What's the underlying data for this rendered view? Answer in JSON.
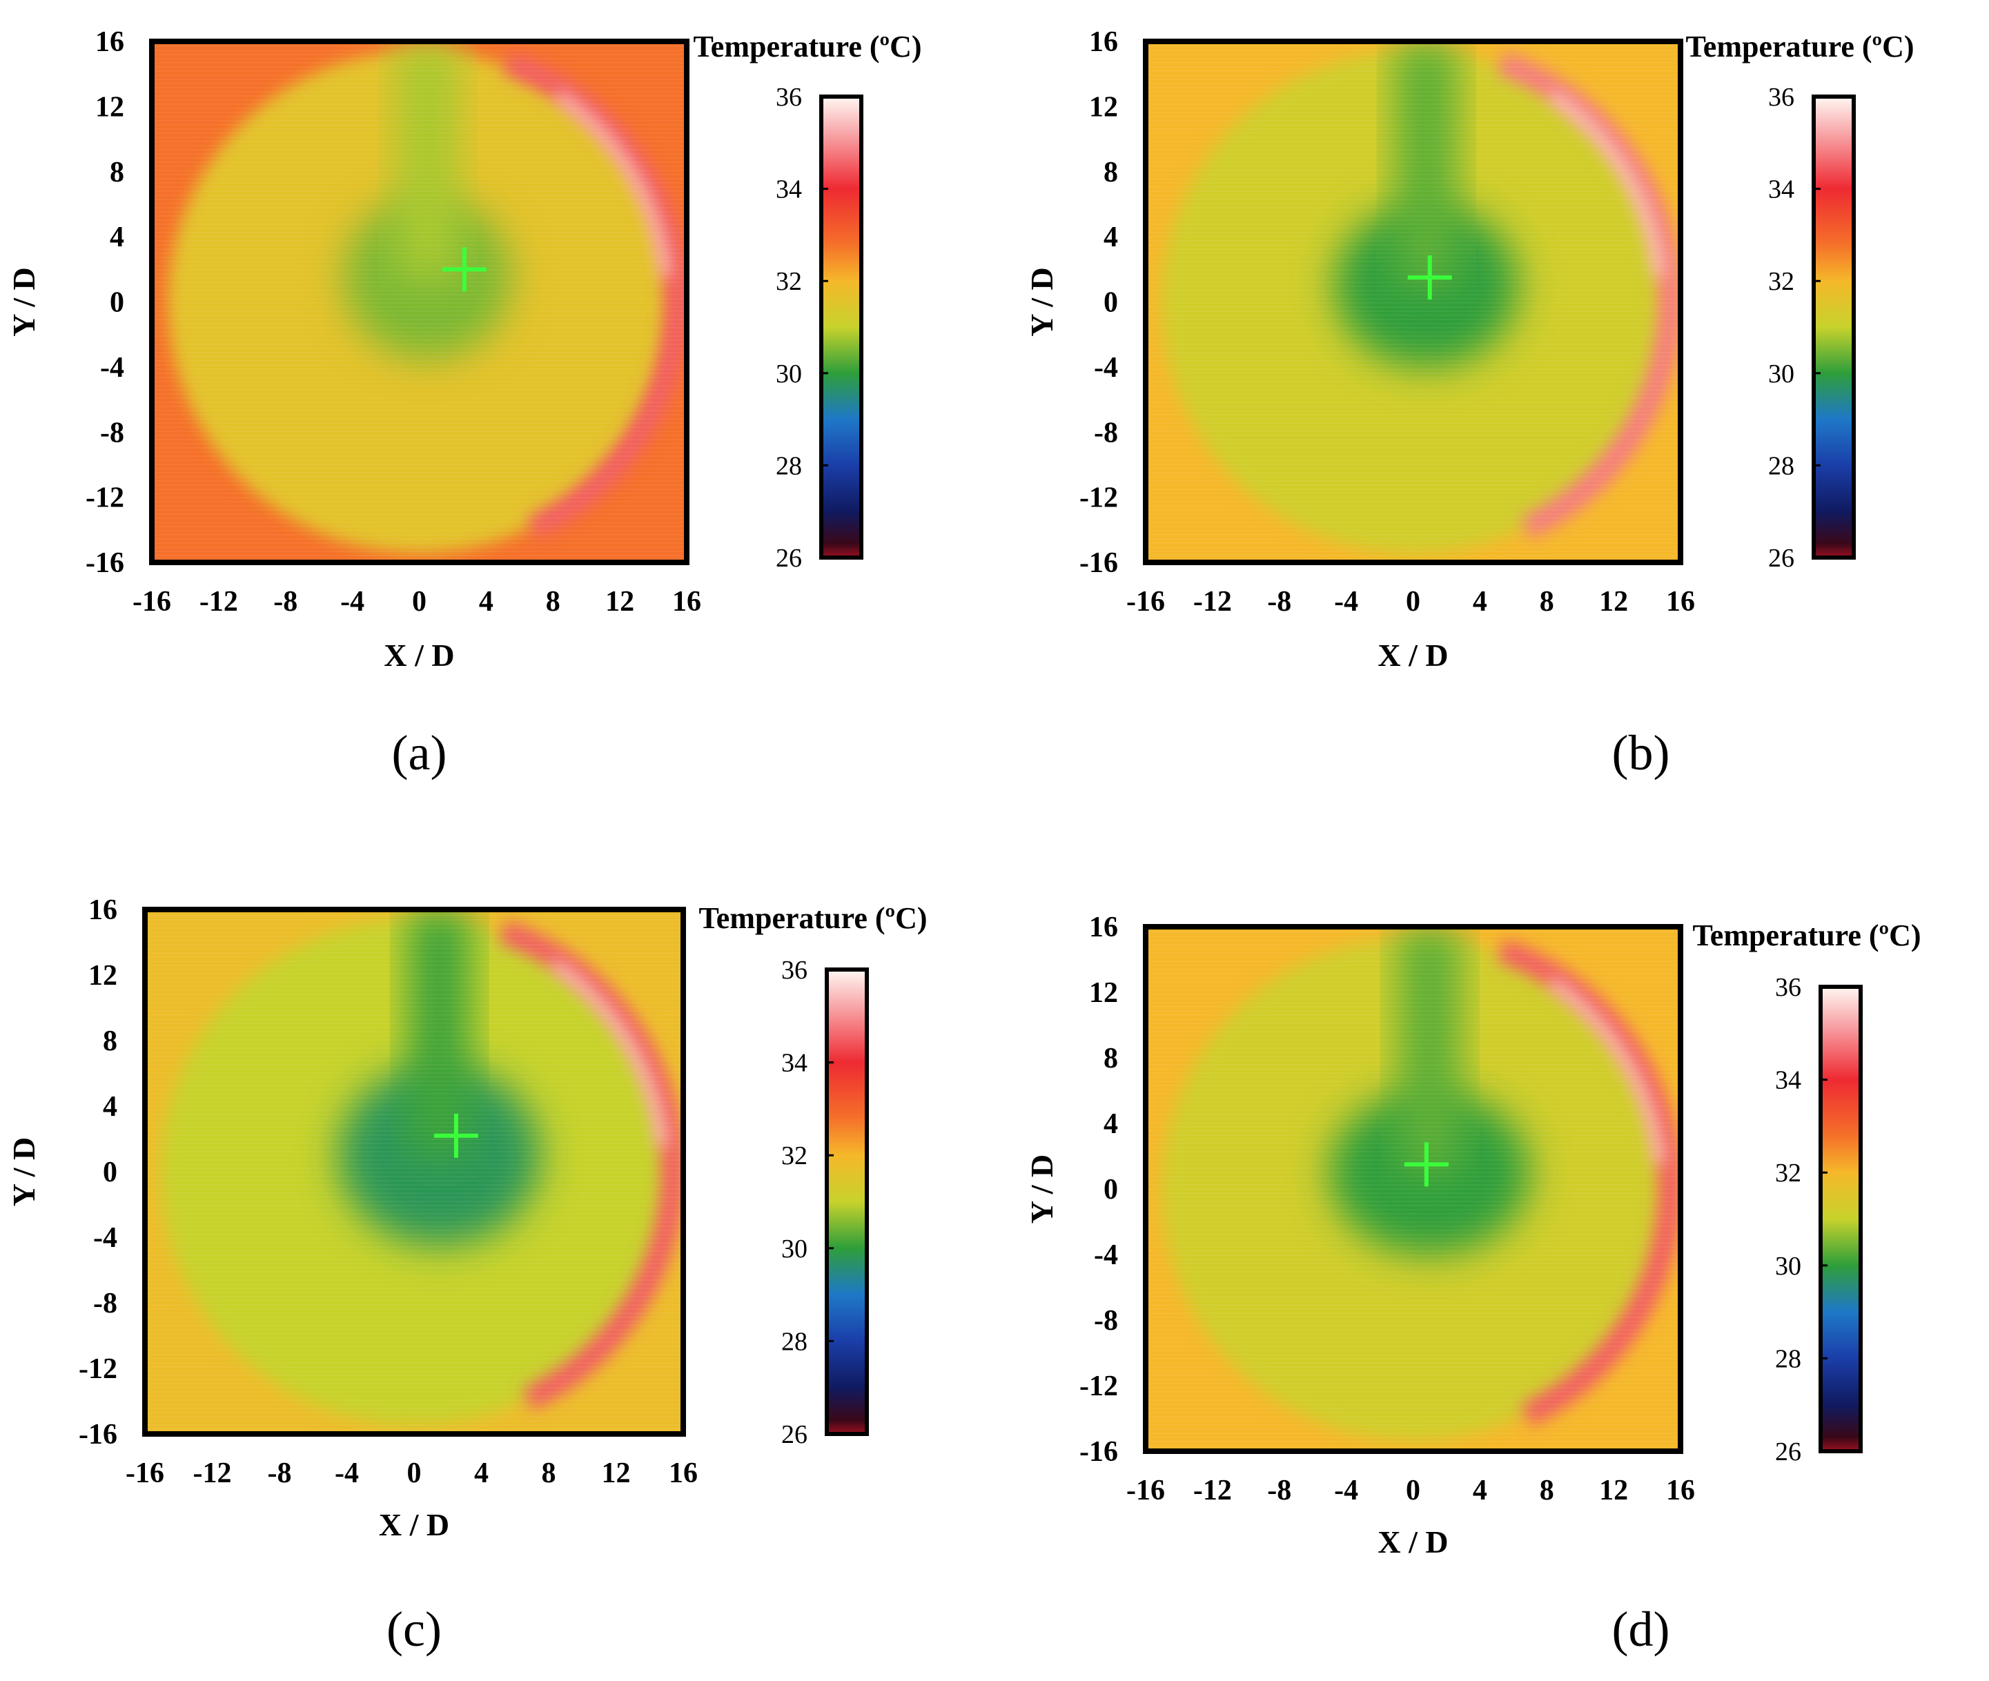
{
  "figure": {
    "description_free": true
  },
  "chart_data": [
    {
      "type": "heatmap",
      "panel_label": "(a)",
      "xlabel": "X / D",
      "ylabel": "Y / D",
      "xlim": [
        -16,
        16
      ],
      "ylim": [
        -16,
        16
      ],
      "xticks": [
        -16,
        -12,
        -8,
        -4,
        0,
        4,
        8,
        12,
        16
      ],
      "yticks": [
        16,
        12,
        8,
        4,
        0,
        -4,
        -8,
        -12,
        -16
      ],
      "colorbar": {
        "title": "Temperature (ºC)",
        "range": [
          26,
          36
        ],
        "ticks": [
          36,
          34,
          32,
          30,
          28,
          26
        ]
      },
      "marker": {
        "symbol": "+",
        "x": 2.7,
        "y": 2.0
      },
      "cool_core": {
        "x": 0.5,
        "y": 1.5,
        "rx": 5.0,
        "ry": 5.0,
        "temp": 30.5
      },
      "background_temp": 31.6,
      "edge_temp": 32.8,
      "hot_rim": {
        "side": "right",
        "temp": 34.5
      }
    },
    {
      "type": "heatmap",
      "panel_label": "(b)",
      "xlabel": "X / D",
      "ylabel": "Y / D",
      "xlim": [
        -16,
        16
      ],
      "ylim": [
        -16,
        16
      ],
      "xticks": [
        -16,
        -12,
        -8,
        -4,
        0,
        4,
        8,
        12,
        16
      ],
      "yticks": [
        16,
        12,
        8,
        4,
        0,
        -4,
        -8,
        -12,
        -16
      ],
      "colorbar": {
        "title": "Temperature (ºC)",
        "range": [
          26,
          36
        ],
        "ticks": [
          36,
          34,
          32,
          30,
          28,
          26
        ]
      },
      "marker": {
        "symbol": "+",
        "x": 1.0,
        "y": 1.5
      },
      "cool_core": {
        "x": 0.8,
        "y": 1.0,
        "rx": 5.5,
        "ry": 5.0,
        "temp": 30.0
      },
      "background_temp": 31.2,
      "edge_temp": 32.0,
      "hot_rim": {
        "side": "right",
        "temp": 34.8
      }
    },
    {
      "type": "heatmap",
      "panel_label": "(c)",
      "xlabel": "X / D",
      "ylabel": "Y / D",
      "xlim": [
        -16,
        16
      ],
      "ylim": [
        -16,
        16
      ],
      "xticks": [
        -16,
        -12,
        -8,
        -4,
        0,
        4,
        8,
        12,
        16
      ],
      "yticks": [
        16,
        12,
        8,
        4,
        0,
        -4,
        -8,
        -12,
        -16
      ],
      "colorbar": {
        "title": "Temperature (ºC)",
        "range": [
          26,
          36
        ],
        "ticks": [
          36,
          34,
          32,
          30,
          28,
          26
        ]
      },
      "marker": {
        "symbol": "+",
        "x": 2.5,
        "y": 2.2
      },
      "cool_core": {
        "x": 1.5,
        "y": 1.0,
        "rx": 6.0,
        "ry": 5.5,
        "temp": 29.8
      },
      "background_temp": 31.0,
      "edge_temp": 31.8,
      "hot_rim": {
        "side": "right",
        "temp": 34.5
      }
    },
    {
      "type": "heatmap",
      "panel_label": "(d)",
      "xlabel": "X / D",
      "ylabel": "Y / D",
      "xlim": [
        -16,
        16
      ],
      "ylim": [
        -16,
        16
      ],
      "xticks": [
        -16,
        -12,
        -8,
        -4,
        0,
        4,
        8,
        12,
        16
      ],
      "yticks": [
        16,
        12,
        8,
        4,
        0,
        -4,
        -8,
        -12,
        -16
      ],
      "colorbar": {
        "title": "Temperature (ºC)",
        "range": [
          26,
          36
        ],
        "ticks": [
          36,
          34,
          32,
          30,
          28,
          26
        ]
      },
      "marker": {
        "symbol": "+",
        "x": 0.8,
        "y": 1.5
      },
      "cool_core": {
        "x": 1.0,
        "y": 1.0,
        "rx": 6.0,
        "ry": 5.0,
        "temp": 30.0
      },
      "background_temp": 31.2,
      "edge_temp": 32.0,
      "hot_rim": {
        "side": "right",
        "temp": 34.5
      }
    }
  ]
}
